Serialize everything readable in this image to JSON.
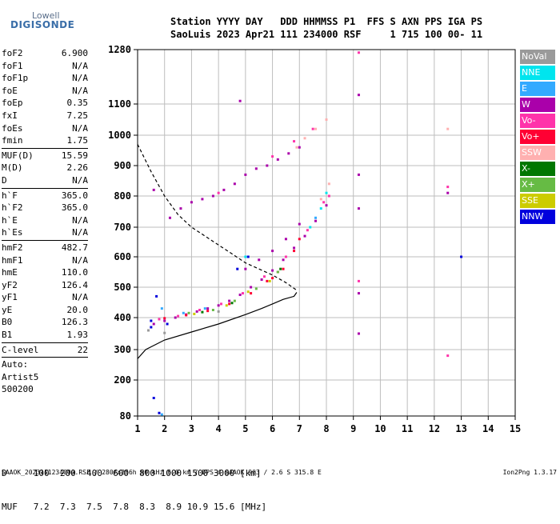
{
  "logo": {
    "line1": "Lowell",
    "line2": "DIGISONDE"
  },
  "header": {
    "line1": "Station YYYY DAY   DDD HHMMSS P1  FFS S AXN PPS IGA PS",
    "line2": "SaoLuis 2023 Apr21 111 234000 RSF     1 715 100 00- 11"
  },
  "params": [
    {
      "name": "foF2",
      "value": "6.900"
    },
    {
      "name": "foF1",
      "value": "N/A"
    },
    {
      "name": "foF1p",
      "value": "N/A"
    },
    {
      "name": "foE",
      "value": "N/A"
    },
    {
      "name": "foEp",
      "value": "0.35"
    },
    {
      "name": "fxI",
      "value": "7.25"
    },
    {
      "name": "foEs",
      "value": "N/A"
    },
    {
      "name": "fmin",
      "value": "1.75"
    },
    {
      "name": "MUF(D)",
      "value": "15.59"
    },
    {
      "name": "M(D)",
      "value": "2.26"
    },
    {
      "name": "D",
      "value": "N/A"
    },
    {
      "name": "h`F",
      "value": "365.0"
    },
    {
      "name": "h`F2",
      "value": "365.0"
    },
    {
      "name": "h`E",
      "value": "N/A"
    },
    {
      "name": "h`Es",
      "value": "N/A"
    },
    {
      "name": "hmF2",
      "value": "482.7"
    },
    {
      "name": "hmF1",
      "value": "N/A"
    },
    {
      "name": "hmE",
      "value": "110.0"
    },
    {
      "name": "yF2",
      "value": "126.4"
    },
    {
      "name": "yF1",
      "value": "N/A"
    },
    {
      "name": "yE",
      "value": "20.0"
    },
    {
      "name": "B0",
      "value": "126.3"
    },
    {
      "name": "B1",
      "value": "1.93"
    },
    {
      "name": "C-level",
      "value": "22"
    }
  ],
  "auto": {
    "line1": "Auto:",
    "line2": "Artist5",
    "line3": "500200"
  },
  "legend": [
    {
      "label": "NoVal",
      "color": "#9a9a9a"
    },
    {
      "label": "NNE",
      "color": "#00e5ee"
    },
    {
      "label": "E",
      "color": "#33aaff"
    },
    {
      "label": "W",
      "color": "#aa00aa"
    },
    {
      "label": "Vo-",
      "color": "#ff33aa"
    },
    {
      "label": "Vo+",
      "color": "#ff0033"
    },
    {
      "label": "SSW",
      "color": "#ffb0b0"
    },
    {
      "label": "X-",
      "color": "#007700"
    },
    {
      "label": "X+",
      "color": "#66bb44"
    },
    {
      "label": "SSE",
      "color": "#cccc00"
    },
    {
      "label": "NNW",
      "color": "#0000dd"
    }
  ],
  "muf_table": {
    "row1": "D     100  200  400  600  800 1000 1500 3000 [km]",
    "row2": "MUF   7.2  7.3  7.5  7.8  8.3  8.9 10.9 15.6 [MHz]"
  },
  "footer": "SAAOK_2023111234000.RSF / 280fx256h 50 kHz 5.0 km / DPS-4 SAAOK 903 / 2.6 S 315.8 E",
  "version": "Ion2Png 1.3.17",
  "chart_data": {
    "type": "scatter",
    "title": "",
    "xlabel": "",
    "ylabel": "",
    "xlim": [
      1,
      15
    ],
    "ylim": [
      80,
      1280
    ],
    "x_ticks": [
      1,
      2,
      3,
      4,
      5,
      6,
      7,
      8,
      9,
      10,
      11,
      12,
      13,
      14,
      15
    ],
    "y_ticks": [
      80,
      200,
      300,
      400,
      500,
      600,
      700,
      800,
      900,
      1000,
      1100,
      1280
    ],
    "grid": true,
    "legend_position": "right",
    "series": [
      {
        "name": "W",
        "color": "#aa00aa",
        "points": [
          [
            1.6,
            380
          ],
          [
            2.0,
            390
          ],
          [
            2.4,
            400
          ],
          [
            2.8,
            410
          ],
          [
            3.2,
            420
          ],
          [
            3.6,
            430
          ],
          [
            4.0,
            440
          ],
          [
            4.4,
            455
          ],
          [
            4.8,
            475
          ],
          [
            5.2,
            500
          ],
          [
            5.6,
            525
          ],
          [
            6.0,
            555
          ],
          [
            6.4,
            590
          ],
          [
            6.8,
            630
          ],
          [
            7.2,
            670
          ],
          [
            7.6,
            720
          ],
          [
            8.0,
            770
          ],
          [
            5.0,
            560
          ],
          [
            5.5,
            590
          ],
          [
            6.0,
            620
          ],
          [
            6.5,
            660
          ],
          [
            7.0,
            710
          ],
          [
            2.2,
            730
          ],
          [
            2.6,
            760
          ],
          [
            3.0,
            780
          ],
          [
            3.4,
            790
          ],
          [
            3.8,
            800
          ],
          [
            4.2,
            820
          ],
          [
            4.6,
            840
          ],
          [
            5.0,
            870
          ],
          [
            5.4,
            890
          ],
          [
            5.8,
            900
          ],
          [
            6.2,
            920
          ],
          [
            6.6,
            940
          ],
          [
            7.0,
            960
          ],
          [
            9.2,
            870
          ],
          [
            9.2,
            760
          ],
          [
            9.2,
            1130
          ],
          [
            9.2,
            350
          ],
          [
            9.2,
            480
          ],
          [
            12.5,
            810
          ],
          [
            4.8,
            1110
          ],
          [
            1.6,
            820
          ]
        ]
      },
      {
        "name": "Vo-",
        "color": "#ff33aa",
        "points": [
          [
            1.8,
            395
          ],
          [
            2.5,
            405
          ],
          [
            3.3,
            425
          ],
          [
            4.1,
            445
          ],
          [
            4.9,
            480
          ],
          [
            5.7,
            535
          ],
          [
            6.5,
            600
          ],
          [
            7.3,
            690
          ],
          [
            7.9,
            780
          ],
          [
            8.1,
            800
          ],
          [
            4.0,
            810
          ],
          [
            6.0,
            930
          ],
          [
            6.8,
            980
          ],
          [
            7.5,
            1020
          ],
          [
            9.2,
            1270
          ],
          [
            9.2,
            520
          ],
          [
            12.5,
            280
          ],
          [
            12.5,
            830
          ]
        ]
      },
      {
        "name": "Vo+",
        "color": "#ff0033",
        "points": [
          [
            2.0,
            398
          ],
          [
            2.8,
            408
          ],
          [
            3.6,
            422
          ],
          [
            4.4,
            445
          ],
          [
            5.2,
            480
          ],
          [
            6.0,
            530
          ],
          [
            6.4,
            560
          ],
          [
            6.8,
            620
          ],
          [
            7.0,
            660
          ],
          [
            5.8,
            520
          ],
          [
            6.2,
            550
          ]
        ]
      },
      {
        "name": "SSW",
        "color": "#ffb0b0",
        "points": [
          [
            7.2,
            990
          ],
          [
            7.6,
            1020
          ],
          [
            8.0,
            1050
          ],
          [
            6.9,
            960
          ],
          [
            8.1,
            840
          ],
          [
            7.8,
            790
          ],
          [
            12.5,
            1020
          ]
        ]
      },
      {
        "name": "NNE",
        "color": "#00e5ee",
        "points": [
          [
            7.4,
            700
          ],
          [
            7.8,
            760
          ],
          [
            8.0,
            810
          ],
          [
            5.0,
            600
          ]
        ]
      },
      {
        "name": "E",
        "color": "#33aaff",
        "points": [
          [
            1.9,
            430
          ],
          [
            2.7,
            415
          ],
          [
            3.5,
            430
          ],
          [
            7.6,
            730
          ],
          [
            1.9,
            85
          ]
        ]
      },
      {
        "name": "X+",
        "color": "#66bb44",
        "points": [
          [
            2.9,
            415
          ],
          [
            3.8,
            425
          ],
          [
            4.6,
            455
          ],
          [
            5.4,
            495
          ],
          [
            6.2,
            550
          ]
        ]
      },
      {
        "name": "SSE",
        "color": "#cccc00",
        "points": [
          [
            3.1,
            412
          ],
          [
            4.3,
            440
          ],
          [
            5.1,
            485
          ],
          [
            5.9,
            520
          ]
        ]
      },
      {
        "name": "NNW",
        "color": "#0000dd",
        "points": [
          [
            1.5,
            370
          ],
          [
            1.7,
            470
          ],
          [
            2.1,
            380
          ],
          [
            1.6,
            140
          ],
          [
            1.8,
            90
          ],
          [
            4.7,
            560
          ],
          [
            5.1,
            600
          ],
          [
            1.5,
            390
          ],
          [
            13.0,
            600
          ]
        ]
      },
      {
        "name": "X-",
        "color": "#007700",
        "points": [
          [
            3.4,
            418
          ],
          [
            4.5,
            448
          ],
          [
            6.3,
            560
          ]
        ]
      },
      {
        "name": "NoVal",
        "color": "#9a9a9a",
        "points": [
          [
            1.4,
            360
          ],
          [
            2.0,
            352
          ],
          [
            4.0,
            420
          ]
        ]
      }
    ],
    "profile_curve": [
      [
        1.0,
        270
      ],
      [
        1.3,
        300
      ],
      [
        2.0,
        330
      ],
      [
        3.0,
        355
      ],
      [
        4.0,
        380
      ],
      [
        5.0,
        410
      ],
      [
        5.6,
        430
      ],
      [
        6.0,
        445
      ],
      [
        6.4,
        460
      ],
      [
        6.8,
        470
      ],
      [
        6.9,
        483
      ]
    ],
    "muf_curve": [
      [
        1.0,
        970
      ],
      [
        1.5,
        880
      ],
      [
        2.0,
        800
      ],
      [
        2.5,
        740
      ],
      [
        3.0,
        700
      ],
      [
        3.5,
        670
      ],
      [
        4.0,
        640
      ],
      [
        4.5,
        610
      ],
      [
        5.0,
        580
      ],
      [
        5.5,
        560
      ],
      [
        6.0,
        540
      ],
      [
        6.5,
        515
      ],
      [
        6.9,
        490
      ]
    ]
  }
}
